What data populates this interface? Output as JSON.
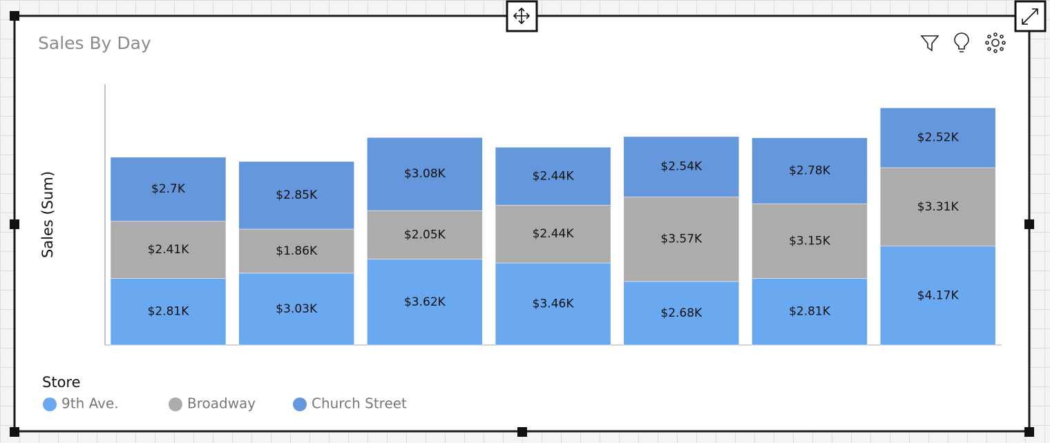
{
  "chart_data": {
    "type": "stacked_bar",
    "title": "Sales By Day",
    "y_label": "Sales (Sum)",
    "legend_title": "Store",
    "categories": [
      null,
      null,
      null,
      null,
      null,
      null,
      null
    ],
    "ylim": [
      0,
      11000
    ],
    "series": [
      {
        "name": "9th Ave.",
        "color": "#6aa8f0",
        "values": [
          2810,
          3030,
          3620,
          3460,
          2680,
          2810,
          4170
        ],
        "value_labels": [
          "$2.81K",
          "$3.03K",
          "$3.62K",
          "$3.46K",
          "$2.68K",
          "$2.81K",
          "$4.17K"
        ]
      },
      {
        "name": "Broadway",
        "color": "#acacac",
        "values": [
          2410,
          1860,
          2050,
          2440,
          3570,
          3150,
          3310
        ],
        "value_labels": [
          "$2.41K",
          "$1.86K",
          "$2.05K",
          "$2.44K",
          "$3.57K",
          "$3.15K",
          "$3.31K"
        ]
      },
      {
        "name": "Church Street",
        "color": "#6597dd",
        "values": [
          2700,
          2850,
          3080,
          2440,
          2540,
          2780,
          2520
        ],
        "value_labels": [
          "$2.7K",
          "$2.85K",
          "$3.08K",
          "$2.44K",
          "$2.54K",
          "$2.78K",
          "$2.52K"
        ]
      }
    ]
  }
}
